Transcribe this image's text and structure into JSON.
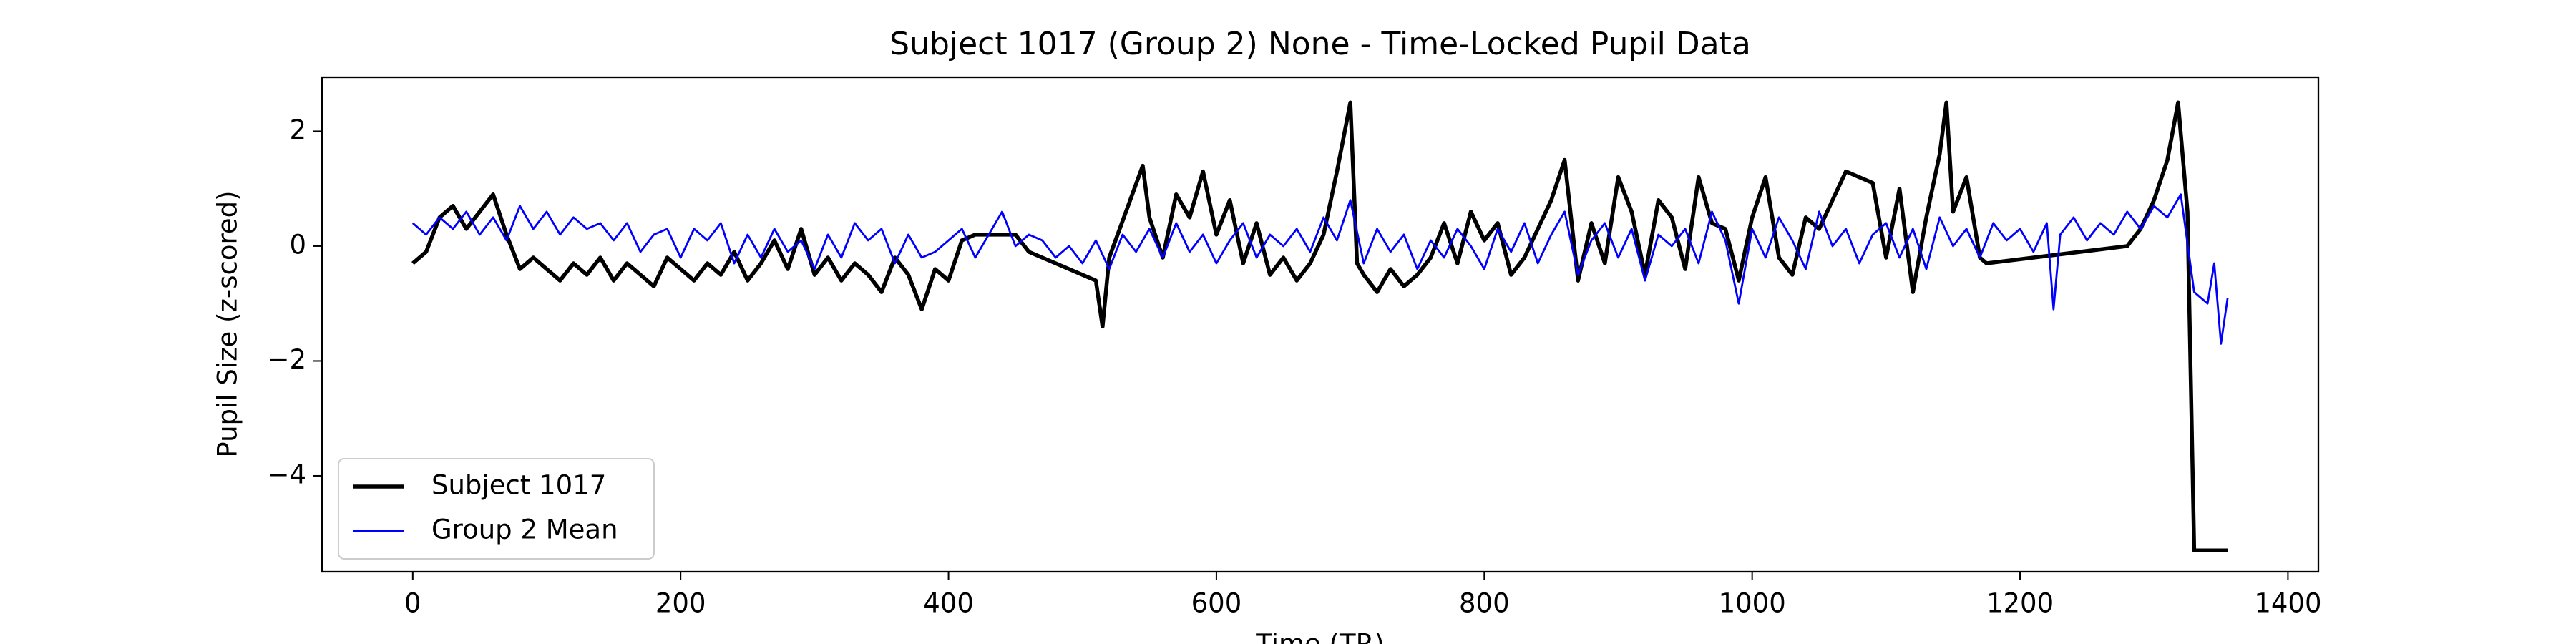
{
  "chart_data": {
    "type": "line",
    "title": "Subject 1017 (Group 2) None - Time-Locked Pupil Data",
    "x_label": "Time (TR)",
    "y_label": "Pupil Size (z-scored)",
    "xlim": [
      -67.75,
      1422.75
    ],
    "ylim": [
      -5.67,
      2.94
    ],
    "xticks": [
      0,
      200,
      400,
      600,
      800,
      1000,
      1200,
      1400
    ],
    "yticks": [
      {
        "value": -4,
        "label": "−4"
      },
      {
        "value": -2,
        "label": "−2"
      },
      0,
      2
    ],
    "grid": false,
    "legend": "lower left",
    "series": [
      {
        "name": "Subject 1017",
        "color": "#000000",
        "linewidth": 5.5,
        "x": [
          0,
          10,
          20,
          30,
          40,
          50,
          60,
          70,
          80,
          90,
          100,
          110,
          120,
          130,
          140,
          150,
          160,
          170,
          180,
          190,
          200,
          210,
          220,
          230,
          240,
          250,
          260,
          270,
          280,
          290,
          300,
          310,
          320,
          330,
          340,
          350,
          360,
          370,
          380,
          390,
          400,
          410,
          420,
          450,
          460,
          510,
          515,
          520,
          545,
          550,
          560,
          570,
          580,
          590,
          600,
          610,
          620,
          630,
          640,
          650,
          660,
          670,
          680,
          690,
          700,
          705,
          710,
          720,
          730,
          740,
          750,
          760,
          770,
          780,
          790,
          800,
          810,
          820,
          830,
          840,
          850,
          860,
          870,
          880,
          890,
          900,
          910,
          920,
          930,
          940,
          950,
          960,
          970,
          980,
          990,
          1000,
          1010,
          1020,
          1030,
          1040,
          1050,
          1060,
          1070,
          1090,
          1100,
          1110,
          1120,
          1130,
          1140,
          1145,
          1150,
          1160,
          1170,
          1175,
          1280,
          1290,
          1300,
          1310,
          1318,
          1325,
          1330,
          1355
        ],
        "values": [
          -0.3,
          -0.1,
          0.5,
          0.7,
          0.3,
          0.6,
          0.9,
          0.2,
          -0.4,
          -0.2,
          -0.4,
          -0.6,
          -0.3,
          -0.5,
          -0.2,
          -0.6,
          -0.3,
          -0.5,
          -0.7,
          -0.2,
          -0.4,
          -0.6,
          -0.3,
          -0.5,
          -0.1,
          -0.6,
          -0.3,
          0.1,
          -0.4,
          0.3,
          -0.5,
          -0.2,
          -0.6,
          -0.3,
          -0.5,
          -0.8,
          -0.2,
          -0.5,
          -1.1,
          -0.4,
          -0.6,
          0.1,
          0.2,
          0.2,
          -0.1,
          -0.6,
          -1.4,
          -0.2,
          1.4,
          0.5,
          -0.2,
          0.9,
          0.5,
          1.3,
          0.2,
          0.8,
          -0.3,
          0.4,
          -0.5,
          -0.2,
          -0.6,
          -0.3,
          0.2,
          1.3,
          2.5,
          -0.3,
          -0.5,
          -0.8,
          -0.4,
          -0.7,
          -0.5,
          -0.2,
          0.4,
          -0.3,
          0.6,
          0.1,
          0.4,
          -0.5,
          -0.2,
          0.3,
          0.8,
          1.5,
          -0.6,
          0.4,
          -0.3,
          1.2,
          0.6,
          -0.5,
          0.8,
          0.5,
          -0.4,
          1.2,
          0.4,
          0.3,
          -0.6,
          0.5,
          1.2,
          -0.2,
          -0.5,
          0.5,
          0.3,
          0.8,
          1.3,
          1.1,
          -0.2,
          1.0,
          -0.8,
          0.5,
          1.6,
          2.5,
          0.6,
          1.2,
          -0.2,
          -0.3,
          0.0,
          0.3,
          0.8,
          1.5,
          2.5,
          0.6,
          -5.3,
          -5.3
        ]
      },
      {
        "name": "Group 2 Mean",
        "color": "#0000ff",
        "linewidth": 2.8,
        "x": [
          0,
          10,
          20,
          30,
          40,
          50,
          60,
          70,
          80,
          90,
          100,
          110,
          120,
          130,
          140,
          150,
          160,
          170,
          180,
          190,
          200,
          210,
          220,
          230,
          240,
          250,
          260,
          270,
          280,
          290,
          300,
          310,
          320,
          330,
          340,
          350,
          360,
          370,
          380,
          390,
          400,
          410,
          420,
          430,
          440,
          450,
          460,
          470,
          480,
          490,
          500,
          510,
          520,
          530,
          540,
          550,
          560,
          570,
          580,
          590,
          600,
          610,
          620,
          630,
          640,
          650,
          660,
          670,
          680,
          690,
          700,
          710,
          720,
          730,
          740,
          750,
          760,
          770,
          780,
          790,
          800,
          810,
          820,
          830,
          840,
          850,
          860,
          870,
          880,
          890,
          900,
          910,
          920,
          930,
          940,
          950,
          960,
          970,
          980,
          990,
          1000,
          1010,
          1020,
          1030,
          1040,
          1050,
          1060,
          1070,
          1080,
          1090,
          1100,
          1110,
          1120,
          1130,
          1140,
          1150,
          1160,
          1170,
          1180,
          1190,
          1200,
          1210,
          1220,
          1225,
          1230,
          1240,
          1250,
          1260,
          1270,
          1280,
          1290,
          1300,
          1310,
          1320,
          1330,
          1340,
          1345,
          1350,
          1355
        ],
        "values": [
          0.4,
          0.2,
          0.5,
          0.3,
          0.6,
          0.2,
          0.5,
          0.1,
          0.7,
          0.3,
          0.6,
          0.2,
          0.5,
          0.3,
          0.4,
          0.1,
          0.4,
          -0.1,
          0.2,
          0.3,
          -0.2,
          0.3,
          0.1,
          0.4,
          -0.3,
          0.2,
          -0.2,
          0.3,
          -0.1,
          0.1,
          -0.4,
          0.2,
          -0.2,
          0.4,
          0.1,
          0.3,
          -0.3,
          0.2,
          -0.2,
          -0.1,
          0.1,
          0.3,
          -0.2,
          0.2,
          0.6,
          0.0,
          0.2,
          0.1,
          -0.2,
          0.0,
          -0.3,
          0.1,
          -0.4,
          0.2,
          -0.1,
          0.3,
          -0.2,
          0.4,
          -0.1,
          0.2,
          -0.3,
          0.1,
          0.4,
          -0.2,
          0.2,
          0.0,
          0.3,
          -0.1,
          0.5,
          0.1,
          0.8,
          -0.3,
          0.3,
          -0.1,
          0.2,
          -0.4,
          0.1,
          -0.2,
          0.3,
          0.0,
          -0.4,
          0.3,
          -0.1,
          0.4,
          -0.3,
          0.2,
          0.6,
          -0.5,
          0.1,
          0.4,
          -0.2,
          0.3,
          -0.6,
          0.2,
          0.0,
          0.3,
          -0.3,
          0.6,
          0.1,
          -1.0,
          0.3,
          -0.2,
          0.5,
          0.1,
          -0.4,
          0.6,
          0.0,
          0.3,
          -0.3,
          0.2,
          0.4,
          -0.2,
          0.3,
          -0.4,
          0.5,
          0.0,
          0.3,
          -0.2,
          0.4,
          0.1,
          0.3,
          -0.1,
          0.4,
          -1.1,
          0.2,
          0.5,
          0.1,
          0.4,
          0.2,
          0.6,
          0.3,
          0.7,
          0.5,
          0.9,
          -0.8,
          -1.0,
          -0.3,
          -1.7,
          -0.9
        ]
      }
    ]
  }
}
